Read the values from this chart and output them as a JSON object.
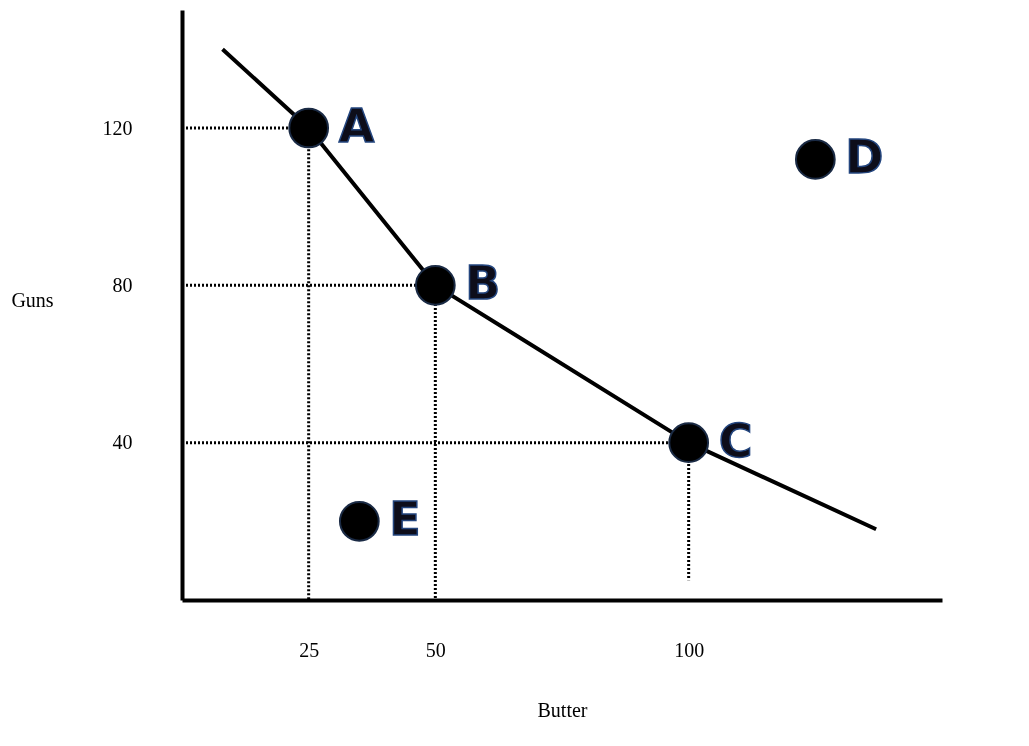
{
  "chart_data": {
    "type": "scatter",
    "xlabel": "Butter",
    "ylabel": "Guns",
    "xlim": [
      0,
      150
    ],
    "xticks": [
      25,
      50,
      100
    ],
    "ylim": [
      0,
      150
    ],
    "yticks": [
      40,
      80,
      120
    ],
    "grid": false,
    "marker": "circle",
    "series": [
      {
        "type": "line",
        "marker": "none",
        "color": "#000000",
        "line_style": "dotted",
        "x": [
          0,
          25,
          25
        ],
        "values": [
          120,
          120,
          0
        ]
      },
      {
        "type": "line",
        "marker": "none",
        "color": "#000000",
        "line_style": "dotted",
        "x": [
          0,
          50,
          50
        ],
        "values": [
          80,
          80,
          0
        ]
      },
      {
        "type": "line",
        "marker": "none",
        "color": "#000000",
        "line_style": "dotted",
        "x": [
          0,
          100,
          100
        ],
        "values": [
          40,
          40,
          5
        ]
      },
      {
        "type": "line",
        "marker": "none",
        "color": "#000000",
        "line_style": "solid",
        "x": [
          8,
          25,
          50,
          100,
          137
        ],
        "values": [
          140,
          120,
          80,
          40,
          18
        ]
      },
      {
        "color": "#000000",
        "x": [
          25,
          50,
          100,
          125,
          35
        ],
        "values": [
          120,
          80,
          40,
          112,
          20
        ]
      }
    ],
    "annotations": [
      {
        "text": "A",
        "x": 25,
        "y": 120
      },
      {
        "text": "B",
        "x": 50,
        "y": 80
      },
      {
        "text": "C",
        "x": 100,
        "y": 40
      },
      {
        "text": "D",
        "x": 125,
        "y": 112
      },
      {
        "text": "E",
        "x": 35,
        "y": 20
      }
    ]
  }
}
